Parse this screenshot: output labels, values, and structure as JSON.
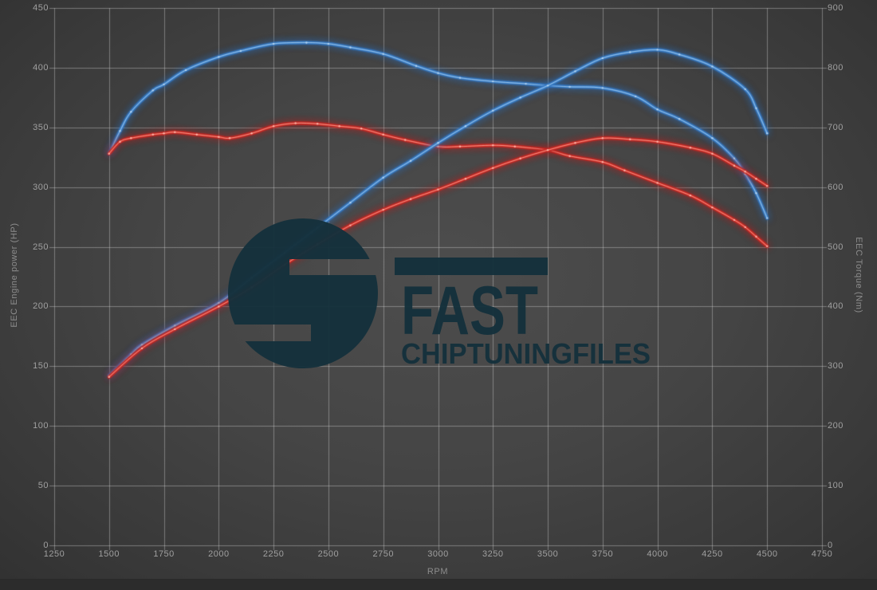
{
  "chart_data": {
    "type": "line",
    "xlabel": "RPM",
    "ylabel_left": "EEC Engine power (HP)",
    "ylabel_right": "EEC Torque (Nm)",
    "xlim": [
      1250,
      4750
    ],
    "ylim_left": [
      0,
      450
    ],
    "ylim_right": [
      0,
      900
    ],
    "x_ticks": [
      1250,
      1500,
      1750,
      2000,
      2250,
      2500,
      2750,
      3000,
      3250,
      3500,
      3750,
      4000,
      4250,
      4500,
      4750
    ],
    "y_ticks_left": [
      0,
      50,
      100,
      150,
      200,
      250,
      300,
      350,
      400,
      450
    ],
    "y_ticks_right": [
      0,
      100,
      200,
      300,
      400,
      500,
      600,
      700,
      800,
      900
    ],
    "grid": true,
    "legend": "none",
    "colors": {
      "blue_glow": "#2a6cb8",
      "blue_line": "#4e93d8",
      "blue_core": "#bad7f2",
      "red_glow": "#b51f1f",
      "red_line": "#e03a2e",
      "red_core": "#ffbcb0"
    },
    "series": [
      {
        "id": "torque-blue",
        "axis": "right",
        "color": "blue",
        "points": [
          [
            1500,
            656
          ],
          [
            1550,
            694
          ],
          [
            1600,
            726
          ],
          [
            1700,
            762
          ],
          [
            1750,
            772
          ],
          [
            1850,
            796
          ],
          [
            2000,
            818
          ],
          [
            2100,
            828
          ],
          [
            2250,
            840
          ],
          [
            2400,
            842
          ],
          [
            2500,
            840
          ],
          [
            2600,
            834
          ],
          [
            2750,
            823
          ],
          [
            2900,
            803
          ],
          [
            3000,
            791
          ],
          [
            3100,
            783
          ],
          [
            3250,
            777
          ],
          [
            3400,
            773
          ],
          [
            3500,
            770
          ],
          [
            3600,
            768
          ],
          [
            3750,
            766
          ],
          [
            3900,
            752
          ],
          [
            4000,
            730
          ],
          [
            4100,
            714
          ],
          [
            4250,
            682
          ],
          [
            4350,
            648
          ],
          [
            4400,
            622
          ],
          [
            4450,
            590
          ],
          [
            4500,
            548
          ]
        ]
      },
      {
        "id": "torque-red",
        "axis": "right",
        "color": "red",
        "points": [
          [
            1500,
            656
          ],
          [
            1550,
            676
          ],
          [
            1600,
            682
          ],
          [
            1700,
            688
          ],
          [
            1750,
            690
          ],
          [
            1800,
            692
          ],
          [
            1900,
            688
          ],
          [
            2000,
            684
          ],
          [
            2050,
            682
          ],
          [
            2150,
            690
          ],
          [
            2250,
            702
          ],
          [
            2350,
            707
          ],
          [
            2450,
            706
          ],
          [
            2550,
            702
          ],
          [
            2650,
            698
          ],
          [
            2750,
            688
          ],
          [
            2850,
            679
          ],
          [
            3000,
            668
          ],
          [
            3100,
            668
          ],
          [
            3250,
            670
          ],
          [
            3350,
            668
          ],
          [
            3500,
            662
          ],
          [
            3600,
            652
          ],
          [
            3750,
            642
          ],
          [
            3850,
            628
          ],
          [
            4000,
            607
          ],
          [
            4150,
            586
          ],
          [
            4250,
            566
          ],
          [
            4350,
            545
          ],
          [
            4400,
            533
          ],
          [
            4450,
            517
          ],
          [
            4500,
            501
          ]
        ]
      },
      {
        "id": "power-blue",
        "axis": "left",
        "color": "blue",
        "points": [
          [
            1500,
            142
          ],
          [
            1600,
            160
          ],
          [
            1650,
            168
          ],
          [
            1800,
            184
          ],
          [
            2000,
            203
          ],
          [
            2150,
            224
          ],
          [
            2300,
            245
          ],
          [
            2450,
            266
          ],
          [
            2600,
            287
          ],
          [
            2750,
            308
          ],
          [
            2875,
            322
          ],
          [
            3000,
            337
          ],
          [
            3125,
            351
          ],
          [
            3250,
            364
          ],
          [
            3375,
            375
          ],
          [
            3500,
            385
          ],
          [
            3625,
            397
          ],
          [
            3750,
            408
          ],
          [
            3875,
            413
          ],
          [
            4000,
            415
          ],
          [
            4100,
            411
          ],
          [
            4250,
            401
          ],
          [
            4400,
            382
          ],
          [
            4450,
            366
          ],
          [
            4500,
            345
          ]
        ]
      },
      {
        "id": "power-red",
        "axis": "left",
        "color": "red",
        "points": [
          [
            1500,
            141
          ],
          [
            1650,
            165
          ],
          [
            1800,
            181
          ],
          [
            2000,
            200
          ],
          [
            2150,
            216
          ],
          [
            2300,
            235
          ],
          [
            2450,
            252
          ],
          [
            2600,
            268
          ],
          [
            2750,
            281
          ],
          [
            2875,
            290
          ],
          [
            3000,
            298
          ],
          [
            3125,
            307
          ],
          [
            3250,
            316
          ],
          [
            3375,
            324
          ],
          [
            3500,
            331
          ],
          [
            3625,
            337
          ],
          [
            3750,
            341
          ],
          [
            3875,
            340
          ],
          [
            4000,
            338
          ],
          [
            4150,
            333
          ],
          [
            4250,
            328
          ],
          [
            4350,
            318
          ],
          [
            4400,
            313
          ],
          [
            4450,
            307
          ],
          [
            4500,
            301
          ]
        ]
      }
    ]
  },
  "watermark": {
    "line1": "FAST",
    "line2": "CHIPTUNINGFILES",
    "color": "#15313c"
  }
}
